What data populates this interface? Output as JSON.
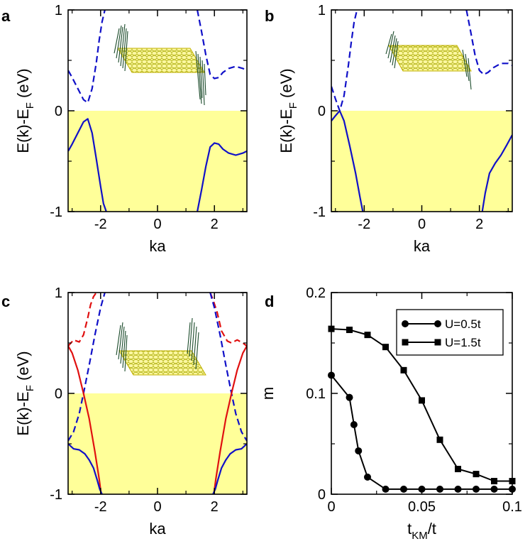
{
  "colors": {
    "filled_fill": "#ffff99",
    "blue": "#1010c8",
    "red": "#e01010",
    "black": "#000000"
  },
  "chart_data": [
    {
      "panel": "a",
      "type": "line",
      "xlabel": "ka",
      "ylabel_main": "E(k)-E",
      "ylabel_sub": "F",
      "ylabel_end": " (eV)",
      "xlim": [
        -3.1416,
        3.1416
      ],
      "ylim": [
        -1,
        1
      ],
      "xticks": [
        "-2",
        "0",
        "2"
      ],
      "yticks": [
        "-1",
        "0",
        "1"
      ],
      "occupied_region": [
        -1,
        0
      ],
      "inset": "zigzag ribbon with edge spins (both edges)",
      "series": [
        {
          "name": "unoccupied-left",
          "color": "blue",
          "style": "dashed",
          "x": [
            -3.14,
            -3.0,
            -2.8,
            -2.6,
            -2.45,
            -2.3,
            -2.15,
            -2.05,
            -1.95,
            -1.85
          ],
          "y": [
            0.4,
            0.33,
            0.22,
            0.11,
            0.08,
            0.22,
            0.48,
            0.7,
            0.88,
            1.0
          ]
        },
        {
          "name": "unoccupied-right",
          "color": "blue",
          "style": "dashed",
          "x": [
            1.4,
            1.55,
            1.7,
            1.85,
            2.0,
            2.15,
            2.3,
            2.5,
            2.75,
            3.0,
            3.14
          ],
          "y": [
            1.0,
            0.78,
            0.55,
            0.36,
            0.32,
            0.33,
            0.38,
            0.42,
            0.44,
            0.42,
            0.4
          ]
        },
        {
          "name": "occupied-left",
          "color": "blue",
          "style": "solid",
          "x": [
            -3.14,
            -3.0,
            -2.8,
            -2.6,
            -2.45,
            -2.3,
            -2.15,
            -2.0,
            -1.9,
            -1.8
          ],
          "y": [
            -0.4,
            -0.33,
            -0.22,
            -0.11,
            -0.08,
            -0.22,
            -0.48,
            -0.75,
            -0.92,
            -1.0
          ]
        },
        {
          "name": "occupied-right",
          "color": "blue",
          "style": "solid",
          "x": [
            1.4,
            1.55,
            1.7,
            1.85,
            2.0,
            2.15,
            2.3,
            2.5,
            2.75,
            3.0,
            3.14
          ],
          "y": [
            -1.0,
            -0.78,
            -0.55,
            -0.36,
            -0.32,
            -0.33,
            -0.38,
            -0.42,
            -0.44,
            -0.42,
            -0.4
          ]
        }
      ]
    },
    {
      "panel": "b",
      "type": "line",
      "xlabel": "ka",
      "ylabel_main": "E(k)-E",
      "ylabel_sub": "F",
      "ylabel_end": " (eV)",
      "xlim": [
        -3.1416,
        3.1416
      ],
      "ylim": [
        -1,
        1
      ],
      "xticks": [
        "-2",
        "0",
        "2"
      ],
      "yticks": [
        "-1",
        "0",
        "1"
      ],
      "occupied_region": [
        -1,
        0
      ],
      "inset": "zigzag ribbon with edge spins (one edge)",
      "series": [
        {
          "name": "unoccupied-left",
          "color": "blue",
          "style": "dashed",
          "x": [
            -3.14,
            -3.0,
            -2.85,
            -2.7,
            -2.55,
            -2.45,
            -2.35,
            -2.25
          ],
          "y": [
            0.24,
            0.12,
            0.0,
            0.15,
            0.45,
            0.68,
            0.88,
            1.0
          ]
        },
        {
          "name": "unoccupied-right",
          "color": "blue",
          "style": "dashed",
          "x": [
            1.55,
            1.7,
            1.85,
            2.0,
            2.15,
            2.3,
            2.5,
            2.75,
            3.0,
            3.14
          ],
          "y": [
            1.0,
            0.78,
            0.55,
            0.4,
            0.36,
            0.38,
            0.43,
            0.47,
            0.47,
            0.45
          ]
        },
        {
          "name": "occupied-left",
          "color": "blue",
          "style": "solid",
          "x": [
            -3.14,
            -3.0,
            -2.85,
            -2.7,
            -2.5,
            -2.3,
            -2.15,
            -2.05
          ],
          "y": [
            -0.1,
            -0.05,
            0.0,
            -0.1,
            -0.35,
            -0.62,
            -0.85,
            -1.0
          ]
        },
        {
          "name": "occupied-right",
          "color": "blue",
          "style": "solid",
          "x": [
            2.1,
            2.2,
            2.35,
            2.55,
            2.75,
            2.95,
            3.14
          ],
          "y": [
            -1.0,
            -0.82,
            -0.62,
            -0.52,
            -0.44,
            -0.34,
            -0.24
          ]
        }
      ]
    },
    {
      "panel": "c",
      "type": "line",
      "xlabel": "ka",
      "ylabel_main": "E(k)-E",
      "ylabel_sub": "F",
      "ylabel_end": " (eV)",
      "xlim": [
        -3.1416,
        3.1416
      ],
      "ylim": [
        -1,
        1
      ],
      "xticks": [
        "-2",
        "0",
        "2"
      ],
      "yticks": [
        "-1",
        "0",
        "1"
      ],
      "occupied_region": [
        -1,
        0
      ],
      "inset": "zigzag ribbon with edge spins (both edges)",
      "series": [
        {
          "name": "red-dashed-left",
          "color": "red",
          "style": "dashed",
          "x": [
            -3.14,
            -2.95,
            -2.75,
            -2.6,
            -2.45,
            -2.35,
            -2.25,
            -2.15
          ],
          "y": [
            0.47,
            0.53,
            0.51,
            0.58,
            0.75,
            0.88,
            0.96,
            1.0
          ]
        },
        {
          "name": "red-dashed-right",
          "color": "red",
          "style": "dashed",
          "x": [
            1.85,
            1.95,
            2.1,
            2.25,
            2.45,
            2.6,
            2.8,
            3.0,
            3.14
          ],
          "y": [
            1.0,
            0.93,
            0.8,
            0.62,
            0.52,
            0.5,
            0.53,
            0.5,
            0.47
          ]
        },
        {
          "name": "blue-dashed-left",
          "color": "blue",
          "style": "dashed",
          "x": [
            -3.14,
            -2.95,
            -2.75,
            -2.6,
            -2.4,
            -2.2,
            -2.0,
            -1.85
          ],
          "y": [
            -0.47,
            -0.38,
            -0.2,
            0.0,
            0.28,
            0.58,
            0.85,
            1.0
          ]
        },
        {
          "name": "blue-dashed-right",
          "color": "blue",
          "style": "dashed",
          "x": [
            1.85,
            2.0,
            2.2,
            2.4,
            2.6,
            2.75,
            2.95,
            3.14
          ],
          "y": [
            1.0,
            0.85,
            0.58,
            0.28,
            0.0,
            -0.2,
            -0.38,
            -0.47
          ]
        },
        {
          "name": "red-solid-left",
          "color": "red",
          "style": "solid",
          "x": [
            -3.14,
            -3.0,
            -2.8,
            -2.6,
            -2.4,
            -2.2,
            -2.05,
            -1.98
          ],
          "y": [
            0.47,
            0.4,
            0.23,
            0.0,
            -0.25,
            -0.58,
            -0.85,
            -1.0
          ]
        },
        {
          "name": "red-solid-right",
          "color": "red",
          "style": "solid",
          "x": [
            1.98,
            2.05,
            2.2,
            2.4,
            2.6,
            2.8,
            3.0,
            3.14
          ],
          "y": [
            -1.0,
            -0.85,
            -0.58,
            -0.25,
            0.0,
            0.23,
            0.4,
            0.47
          ]
        },
        {
          "name": "blue-solid-left",
          "color": "blue",
          "style": "solid",
          "x": [
            -3.14,
            -2.95,
            -2.75,
            -2.55,
            -2.4,
            -2.25,
            -2.12,
            -2.03,
            -1.95
          ],
          "y": [
            -0.5,
            -0.55,
            -0.56,
            -0.6,
            -0.66,
            -0.74,
            -0.86,
            -0.95,
            -1.0
          ]
        },
        {
          "name": "blue-solid-right",
          "color": "blue",
          "style": "solid",
          "x": [
            1.95,
            2.03,
            2.12,
            2.25,
            2.4,
            2.55,
            2.75,
            2.95,
            3.14
          ],
          "y": [
            -1.0,
            -0.95,
            -0.86,
            -0.74,
            -0.66,
            -0.6,
            -0.56,
            -0.55,
            -0.5
          ]
        }
      ]
    },
    {
      "panel": "d",
      "type": "line",
      "xlabel": "t",
      "xlabel_sub": "KM",
      "xlabel_end": "/t",
      "ylabel": "m",
      "xlim": [
        0,
        0.1
      ],
      "ylim": [
        0,
        0.2
      ],
      "xticks": [
        "0",
        "0.05",
        "0.1"
      ],
      "yticks": [
        "0",
        "0.1",
        "0.2"
      ],
      "legend": "top-right",
      "series": [
        {
          "name": "U=0.5t",
          "marker": "circle",
          "color": "black",
          "x": [
            0,
            0.01,
            0.0125,
            0.015,
            0.02,
            0.03,
            0.04,
            0.05,
            0.06,
            0.07,
            0.08,
            0.09,
            0.1
          ],
          "y": [
            0.118,
            0.096,
            0.069,
            0.043,
            0.017,
            0.005,
            0.005,
            0.005,
            0.005,
            0.005,
            0.005,
            0.005,
            0.005
          ]
        },
        {
          "name": "U=1.5t",
          "marker": "square",
          "color": "black",
          "x": [
            0,
            0.01,
            0.02,
            0.03,
            0.04,
            0.05,
            0.06,
            0.07,
            0.08,
            0.09,
            0.1
          ],
          "y": [
            0.164,
            0.163,
            0.158,
            0.146,
            0.123,
            0.093,
            0.054,
            0.025,
            0.02,
            0.013,
            0.013
          ]
        }
      ]
    }
  ]
}
